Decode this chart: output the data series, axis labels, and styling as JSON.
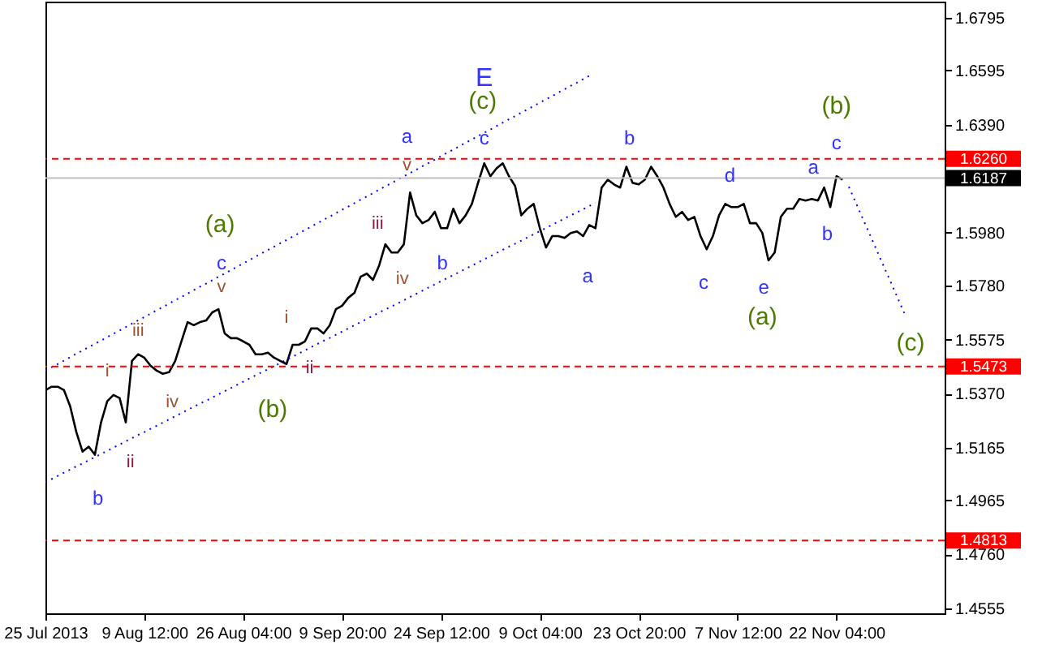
{
  "chart_data": {
    "type": "line",
    "categories": [
      "25 Jul 2013",
      null,
      null,
      null,
      null,
      null,
      null,
      null,
      null,
      null,
      null,
      null,
      null,
      null,
      null,
      null,
      "9 Aug 12:00",
      null,
      null,
      null,
      null,
      null,
      null,
      null,
      null,
      null,
      null,
      null,
      null,
      null,
      null,
      null,
      "26 Aug 04:00",
      null,
      null,
      null,
      null,
      null,
      null,
      null,
      null,
      null,
      null,
      null,
      null,
      null,
      null,
      null,
      "9 Sep 20:00",
      null,
      null,
      null,
      null,
      null,
      null,
      null,
      null,
      null,
      null,
      null,
      null,
      null,
      null,
      null,
      "24 Sep 12:00",
      null,
      null,
      null,
      null,
      null,
      null,
      null,
      null,
      null,
      null,
      null,
      null,
      null,
      null,
      null,
      "9 Oct 04:00",
      null,
      null,
      null,
      null,
      null,
      null,
      null,
      null,
      null,
      null,
      null,
      null,
      null,
      null,
      null,
      "23 Oct 20:00",
      null,
      null,
      null,
      null,
      null,
      null,
      null,
      null,
      null,
      null,
      null,
      null,
      null,
      null,
      null,
      "7 Nov 12:00",
      null,
      null,
      null,
      null,
      null,
      null,
      null,
      null,
      null,
      null,
      null,
      null,
      null,
      null,
      null,
      "22 Nov 04:00",
      null,
      null,
      null,
      null,
      null,
      null,
      null,
      null,
      null,
      null,
      null,
      null,
      null,
      null,
      null,
      null,
      null
    ],
    "series": [
      {
        "color": "#000000",
        "line_style": "solid",
        "values": [
          1.5383,
          1.5396,
          1.5396,
          1.5383,
          1.5322,
          1.5224,
          1.515,
          1.5169,
          1.5138,
          1.5261,
          1.5341,
          1.5365,
          1.5353,
          1.5261,
          1.5494,
          1.5519,
          1.5506,
          1.5476,
          1.5457,
          1.5445,
          1.5451,
          1.5494,
          1.5568,
          1.5641,
          1.5629,
          1.5641,
          1.5647,
          1.5678,
          1.569,
          1.5598,
          1.558,
          1.558,
          1.5568,
          1.5555,
          1.5519,
          1.5519,
          1.5525,
          1.5506,
          1.5494,
          1.5482,
          1.5555,
          1.5555,
          1.5568,
          1.5617,
          1.5617,
          1.5598,
          1.5629,
          1.569,
          1.5703,
          1.5733,
          1.5752,
          1.5813,
          1.5825,
          1.5801,
          1.5856,
          1.5936,
          1.5905,
          1.5905,
          1.5936,
          1.6132,
          1.6046,
          1.6016,
          1.6028,
          1.6059,
          1.5997,
          1.5997,
          1.6071,
          1.6016,
          1.6046,
          1.6089,
          1.6169,
          1.6243,
          1.6194,
          1.6224,
          1.6243,
          1.6194,
          1.6157,
          1.6046,
          1.6071,
          1.6089,
          1.5997,
          1.5924,
          1.5967,
          1.5967,
          1.596,
          1.5979,
          1.5985,
          1.5967,
          1.6009,
          1.5997,
          1.6151,
          1.6181,
          1.6163,
          1.6151,
          1.623,
          1.6169,
          1.6163,
          1.6181,
          1.623,
          1.6194,
          1.6151,
          1.6089,
          1.604,
          1.6059,
          1.6028,
          1.604,
          1.5967,
          1.5917,
          1.5967,
          1.6046,
          1.6089,
          1.6077,
          1.6077,
          1.6089,
          1.6016,
          1.6016,
          1.5979,
          1.5875,
          1.5905,
          1.604,
          1.6071,
          1.6071,
          1.6108,
          1.6102,
          1.6108,
          1.6102,
          1.6151,
          1.6077,
          1.6194,
          1.6181,
          null,
          null,
          null,
          null,
          null,
          null,
          null,
          null,
          null,
          null,
          null,
          null,
          null,
          null,
          null,
          null
        ]
      },
      {
        "color": "#0000ff",
        "line_style": "dotted",
        "values": [
          1.5457,
          1.547,
          1.5482,
          1.5495,
          1.5508,
          1.5521,
          1.5533,
          1.5546,
          1.5559,
          1.5571,
          1.5584,
          1.5597,
          1.5609,
          1.5622,
          1.5635,
          1.5648,
          1.566,
          1.5673,
          1.5686,
          1.5698,
          1.5711,
          1.5724,
          1.5736,
          1.5749,
          1.5762,
          1.5775,
          1.5787,
          1.58,
          1.5813,
          1.5825,
          1.5838,
          1.5851,
          1.5863,
          1.5876,
          1.5889,
          1.5902,
          1.5914,
          1.5927,
          1.594,
          1.5952,
          1.5965,
          1.5978,
          1.599,
          1.6003,
          1.6016,
          1.6029,
          1.6041,
          1.6054,
          1.6067,
          1.6079,
          1.6092,
          1.6105,
          1.6117,
          1.613,
          1.6143,
          1.6156,
          1.6168,
          1.6181,
          1.6194,
          1.6206,
          1.6219,
          1.6232,
          1.6244,
          1.6257,
          1.627,
          1.6283,
          1.6295,
          1.6308,
          1.6321,
          1.6333,
          1.6346,
          1.6359,
          1.6371,
          1.6384,
          1.6397,
          1.641,
          1.6422,
          1.6435,
          1.6448,
          1.646,
          1.6473,
          1.6486,
          1.6498,
          1.6511,
          1.6524,
          1.6537,
          1.6549,
          1.6562,
          1.6575,
          null,
          null,
          null,
          null,
          null,
          null,
          null,
          null,
          null,
          null,
          null,
          null,
          null,
          null,
          null,
          null,
          null,
          null,
          null,
          null,
          null,
          null,
          null,
          null,
          null,
          null,
          null,
          null,
          null,
          null,
          null,
          null,
          null,
          null,
          null,
          null,
          null,
          null,
          null,
          null,
          null,
          null,
          null,
          null,
          null,
          null,
          null,
          null,
          null,
          null,
          null,
          null,
          null,
          null,
          null,
          null,
          null
        ]
      },
      {
        "color": "#0000ff",
        "line_style": "dotted",
        "values": [
          1.5034,
          1.5046,
          1.5058,
          1.507,
          1.5082,
          1.5094,
          1.5105,
          1.5117,
          1.5129,
          1.5141,
          1.5153,
          1.5165,
          1.5177,
          1.5189,
          1.5201,
          1.5213,
          1.5224,
          1.5236,
          1.5248,
          1.526,
          1.5272,
          1.5284,
          1.5296,
          1.5308,
          1.532,
          1.5332,
          1.5343,
          1.5355,
          1.5367,
          1.5379,
          1.5391,
          1.5403,
          1.5415,
          1.5427,
          1.5439,
          1.5451,
          1.5462,
          1.5474,
          1.5486,
          1.5498,
          1.551,
          1.5522,
          1.5534,
          1.5546,
          1.5558,
          1.557,
          1.5581,
          1.5593,
          1.5605,
          1.5617,
          1.5629,
          1.5641,
          1.5653,
          1.5665,
          1.5677,
          1.5689,
          1.57,
          1.5712,
          1.5724,
          1.5736,
          1.5748,
          1.576,
          1.5772,
          1.5784,
          1.5796,
          1.5808,
          1.5819,
          1.5831,
          1.5843,
          1.5855,
          1.5867,
          1.5879,
          1.5891,
          1.5903,
          1.5915,
          1.5927,
          1.5938,
          1.595,
          1.5962,
          1.5974,
          1.5986,
          1.5998,
          1.601,
          1.6022,
          1.6034,
          1.6046,
          1.6057,
          1.6069,
          1.6081,
          1.6093,
          null,
          null,
          null,
          null,
          null,
          null,
          null,
          null,
          null,
          null,
          null,
          null,
          null,
          null,
          null,
          null,
          null,
          null,
          null,
          null,
          null,
          null,
          null,
          null,
          null,
          null,
          null,
          null,
          null,
          null,
          null,
          null,
          null,
          null,
          null,
          null,
          null,
          null,
          null,
          null,
          null,
          null,
          null,
          null,
          null,
          null,
          null,
          null,
          null,
          null,
          null,
          null,
          null,
          null,
          null,
          null
        ]
      },
      {
        "color": "#0000ff",
        "line_style": "dotted",
        "values": [
          null,
          null,
          null,
          null,
          null,
          null,
          null,
          null,
          null,
          null,
          null,
          null,
          null,
          null,
          null,
          null,
          null,
          null,
          null,
          null,
          null,
          null,
          null,
          null,
          null,
          null,
          null,
          null,
          null,
          null,
          null,
          null,
          null,
          null,
          null,
          null,
          null,
          null,
          null,
          null,
          null,
          null,
          null,
          null,
          null,
          null,
          null,
          null,
          null,
          null,
          null,
          null,
          null,
          null,
          null,
          null,
          null,
          null,
          null,
          null,
          null,
          null,
          null,
          null,
          null,
          null,
          null,
          null,
          null,
          null,
          null,
          null,
          null,
          null,
          null,
          null,
          null,
          null,
          null,
          null,
          null,
          null,
          null,
          null,
          null,
          null,
          null,
          null,
          null,
          null,
          null,
          null,
          null,
          null,
          null,
          null,
          null,
          null,
          null,
          null,
          null,
          null,
          null,
          null,
          null,
          null,
          null,
          null,
          null,
          null,
          null,
          null,
          null,
          null,
          null,
          null,
          null,
          null,
          null,
          null,
          null,
          null,
          null,
          null,
          null,
          null,
          null,
          null,
          null,
          null,
          1.6154,
          1.6101,
          1.6047,
          1.5994,
          1.5941,
          1.5887,
          1.5834,
          1.5781,
          1.5727,
          1.5674,
          null,
          null,
          null,
          null,
          null,
          null
        ]
      }
    ],
    "marker": "none",
    "ylim": [
      1.4537,
      1.6856
    ],
    "yticks": [
      1.6795,
      1.6595,
      {
        "value": 1.639,
        "label": "1.6390"
      },
      {
        "value": 1.598,
        "label": "1.5980"
      },
      {
        "value": 1.578,
        "label": "1.5780"
      },
      1.5575,
      {
        "value": 1.537,
        "label": "1.5370"
      },
      1.5165,
      1.4965,
      {
        "value": 1.476,
        "label": "1.4760"
      },
      1.4555
    ],
    "ref_lines": [
      {
        "axis": "y",
        "value": 1.626,
        "label": "1.6260",
        "color": "#ff0000",
        "line_style": "dashed"
      },
      {
        "axis": "y",
        "value": 1.6187,
        "label": "1.6187",
        "color": "#c0c0c0",
        "line_style": "solid"
      },
      {
        "axis": "y",
        "value": 1.5473,
        "label": "1.5473",
        "color": "#ff0000",
        "line_style": "dashed"
      },
      {
        "axis": "y",
        "value": 1.4813,
        "label": "1.4813",
        "color": "#ff0000",
        "line_style": "dashed"
      }
    ],
    "annotations": [
      "E",
      "(c)",
      "(a)",
      "(b)",
      "(a)",
      "(b)",
      {
        "text": "(c)",
        "y": 1.5674
      },
      "a",
      "c",
      "c",
      "b",
      "b",
      "b",
      "a",
      "d",
      "c",
      "e",
      "a",
      "b",
      "c",
      "i",
      "iii",
      "ii",
      "iv",
      "v",
      "i",
      "ii",
      "iii",
      "iv",
      "v"
    ]
  }
}
